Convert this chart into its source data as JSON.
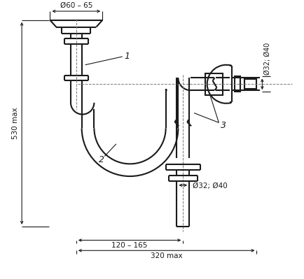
{
  "bg_color": "#ffffff",
  "line_color": "#1a1a1a",
  "annotations": {
    "dim_top": "Ø60 – 65",
    "dim_right": "Ø32; Ø40",
    "dim_bottom_center": "Ø32; Ø40",
    "dim_120_165": "120 – 165",
    "dim_320": "320 max",
    "dim_530": "530 max",
    "label1": "1",
    "label2": "2",
    "label3": "3"
  }
}
